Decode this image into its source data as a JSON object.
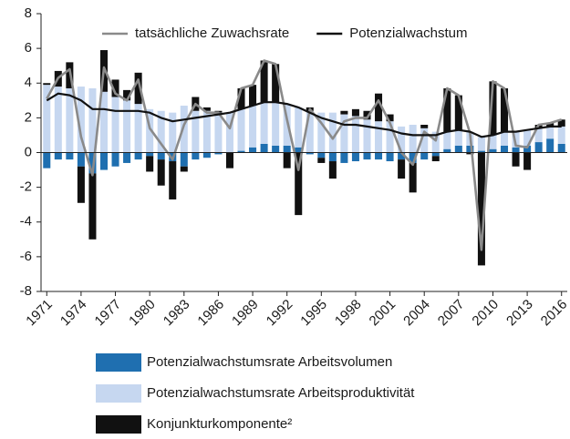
{
  "chart_data": {
    "type": "stacked_bar_line",
    "categories": [
      "1971",
      null,
      null,
      "1974",
      null,
      null,
      "1977",
      null,
      null,
      "1980",
      null,
      null,
      "1983",
      null,
      null,
      "1986",
      null,
      null,
      "1989",
      null,
      null,
      "1992",
      null,
      null,
      "1995",
      null,
      null,
      "1998",
      null,
      null,
      "2001",
      null,
      null,
      "2004",
      null,
      null,
      "2007",
      null,
      null,
      "2010",
      null,
      null,
      "2013",
      null,
      null,
      "2016"
    ],
    "series": [
      {
        "name": "Potenzialwachstumsrate Arbeitsvolumen",
        "kind": "bar",
        "color": "#1f6fb0",
        "values": [
          -0.9,
          -0.4,
          -0.4,
          -0.8,
          -1.2,
          -1.0,
          -0.8,
          -0.6,
          -0.4,
          -0.2,
          -0.4,
          -0.5,
          -0.8,
          -0.4,
          -0.3,
          -0.1,
          0.0,
          0.1,
          0.3,
          0.5,
          0.4,
          0.4,
          0.3,
          -0.1,
          -0.3,
          -0.5,
          -0.6,
          -0.5,
          -0.4,
          -0.4,
          -0.5,
          -0.4,
          -0.6,
          -0.4,
          -0.2,
          0.2,
          0.4,
          0.4,
          0.1,
          0.2,
          0.4,
          0.3,
          0.4,
          0.6,
          0.8,
          0.5
        ]
      },
      {
        "name": "Potenzialwachstumsrate Arbeitsproduktivität",
        "kind": "bar",
        "color": "#c6d7f0",
        "values": [
          3.9,
          3.8,
          3.7,
          3.8,
          3.7,
          3.5,
          3.2,
          3.0,
          2.8,
          2.5,
          2.4,
          2.3,
          2.7,
          2.4,
          2.4,
          2.3,
          2.3,
          2.4,
          2.4,
          2.4,
          2.5,
          2.4,
          2.3,
          2.4,
          2.3,
          2.3,
          2.2,
          2.1,
          1.9,
          1.8,
          1.8,
          1.5,
          1.6,
          1.4,
          1.2,
          1.0,
          0.9,
          0.8,
          0.8,
          0.8,
          0.8,
          0.9,
          0.9,
          0.8,
          0.7,
          1.0
        ]
      },
      {
        "name": "Konjunkturkomponente²",
        "kind": "bar",
        "color": "#111111",
        "values": [
          0.1,
          0.9,
          1.5,
          -2.1,
          -3.8,
          2.4,
          1.0,
          0.6,
          1.8,
          -0.9,
          -1.5,
          -2.2,
          -0.3,
          0.8,
          0.2,
          0.1,
          -0.9,
          1.2,
          1.2,
          2.4,
          2.2,
          -0.9,
          -3.6,
          0.2,
          -0.3,
          -1.0,
          0.2,
          0.4,
          0.5,
          1.6,
          0.4,
          -1.1,
          -1.7,
          0.2,
          -0.3,
          2.5,
          2.0,
          -0.1,
          -6.5,
          3.1,
          2.5,
          -0.8,
          -1.0,
          0.2,
          0.2,
          0.4
        ]
      },
      {
        "name": "tatsächliche Zuwachsrate",
        "kind": "line",
        "color": "#8a8a8a",
        "values": [
          3.1,
          4.3,
          4.8,
          0.9,
          -1.3,
          4.9,
          3.4,
          3.0,
          4.2,
          1.4,
          0.5,
          -0.4,
          1.6,
          2.8,
          2.3,
          2.3,
          1.4,
          3.7,
          3.9,
          5.3,
          5.1,
          1.9,
          -1.0,
          2.5,
          1.7,
          0.8,
          1.8,
          2.0,
          2.0,
          3.0,
          1.7,
          0.0,
          -0.7,
          1.2,
          0.7,
          3.7,
          3.3,
          1.1,
          -5.6,
          4.1,
          3.7,
          0.4,
          0.3,
          1.6,
          1.7,
          1.9
        ]
      },
      {
        "name": "Potenzialwachstum",
        "kind": "line",
        "color": "#111111",
        "values": [
          3.0,
          3.4,
          3.3,
          3.0,
          2.5,
          2.5,
          2.4,
          2.4,
          2.4,
          2.3,
          2.0,
          1.8,
          1.9,
          2.0,
          2.1,
          2.2,
          2.3,
          2.5,
          2.7,
          2.9,
          2.9,
          2.8,
          2.6,
          2.3,
          2.0,
          1.8,
          1.6,
          1.6,
          1.5,
          1.4,
          1.3,
          1.1,
          1.0,
          1.0,
          1.0,
          1.2,
          1.3,
          1.2,
          0.9,
          1.0,
          1.2,
          1.2,
          1.3,
          1.4,
          1.5,
          1.5
        ]
      }
    ],
    "ylim": [
      -8,
      8
    ],
    "yticks": [
      -8,
      -6,
      -4,
      -2,
      0,
      2,
      4,
      6,
      8
    ]
  }
}
